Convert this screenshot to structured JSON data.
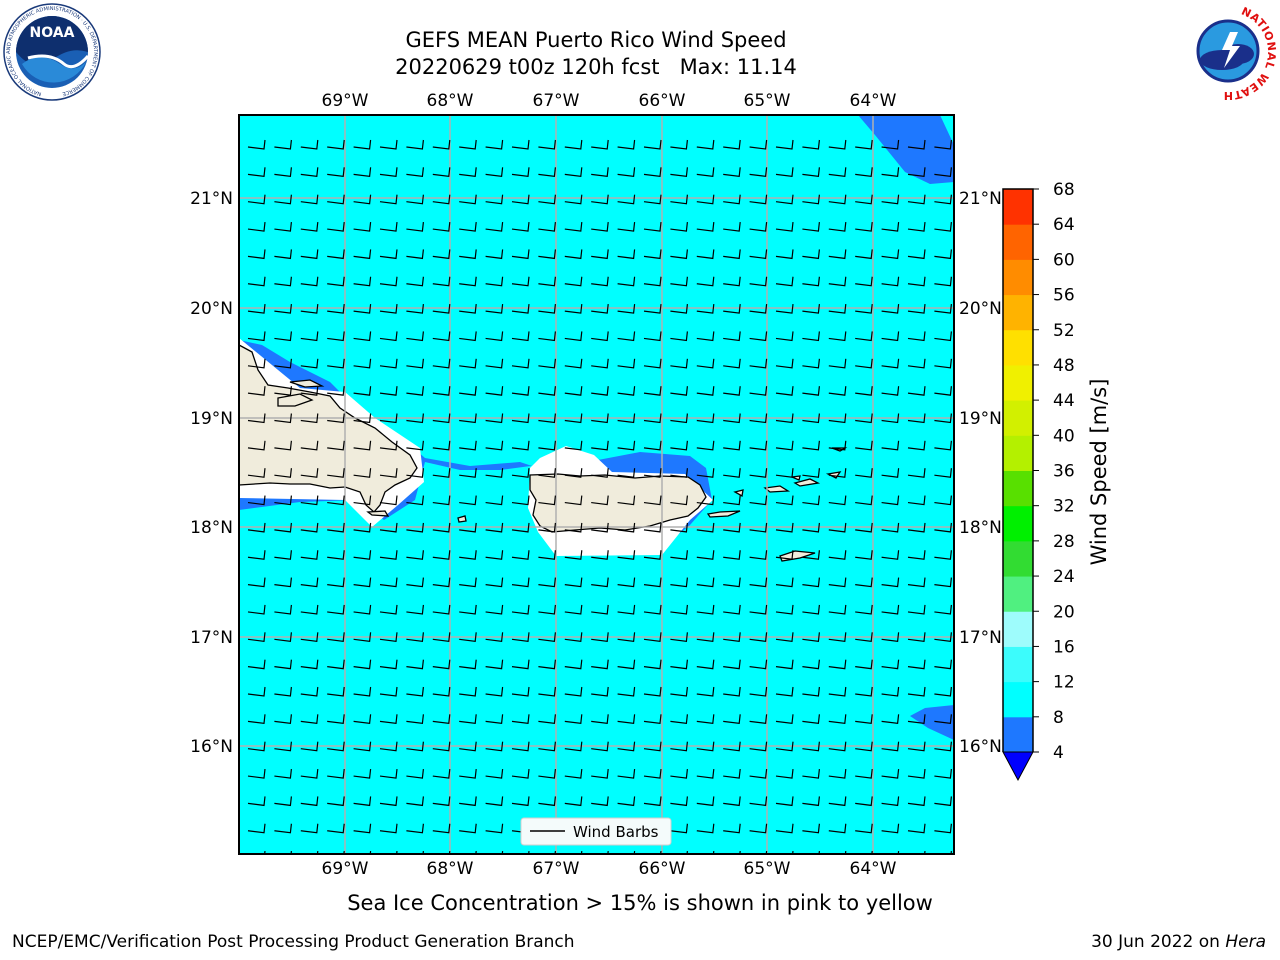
{
  "title": "GEFS MEAN Puerto Rico Wind Speed",
  "subtitle_run": "20220629 t00z 120h fcst",
  "subtitle_max": "Max: 11.14",
  "sea_ice_note": "Sea Ice Concentration > 15% is shown in pink to yellow",
  "footer_left": "NCEP/EMC/Verification Post Processing Product Generation Branch",
  "footer_date": "30 Jun 2022 on",
  "footer_host": "Hera",
  "legend_label": "Wind Barbs",
  "colorbar_label": "Wind Speed [m/s]",
  "lon_ticks": [
    "69°W",
    "68°W",
    "67°W",
    "66°W",
    "65°W",
    "64°W"
  ],
  "lat_ticks": [
    "21°N",
    "20°N",
    "19°N",
    "18°N",
    "17°N",
    "16°N"
  ],
  "colorbar": {
    "levels": [
      4,
      8,
      12,
      16,
      20,
      24,
      28,
      32,
      36,
      40,
      44,
      48,
      52,
      56,
      60,
      64,
      68
    ],
    "colors": [
      "#1e78ff",
      "#00ffff",
      "#3cfcfc",
      "#9efcfc",
      "#50f080",
      "#32dc32",
      "#00f000",
      "#58e000",
      "#b4f000",
      "#d2f000",
      "#f0f000",
      "#ffe000",
      "#ffb300",
      "#ff8c00",
      "#ff6400",
      "#ff3200"
    ],
    "under_color": "#0000ff"
  },
  "colors": {
    "ocean_fill": "#00ffff",
    "deep_blue": "#1e78ff",
    "land": "#f0ecdc",
    "grid": "#b0b0b0"
  },
  "logos": {
    "left": "NOAA",
    "right": "NATIONAL WEATHER SERVICE"
  }
}
